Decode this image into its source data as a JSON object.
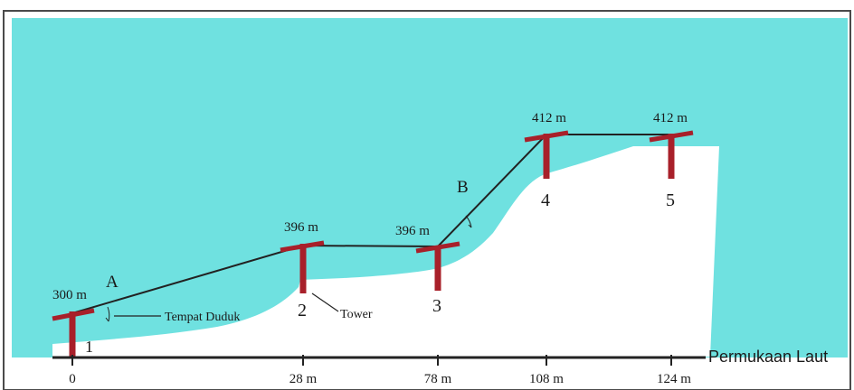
{
  "colors": {
    "sky": "#6fe1e0",
    "ground": "#ffffff",
    "tower": "#a8202a",
    "cable": "#222222",
    "axis": "#222222",
    "frame": "#4a4a4a"
  },
  "elevations": {
    "tower1": "300 m",
    "tower2": "396 m",
    "tower3": "396 m",
    "tower4": "412 m",
    "tower5": "412 m"
  },
  "tower_numbers": {
    "t1": "1",
    "t2": "2",
    "t3": "3",
    "t4": "4",
    "t5": "5"
  },
  "segments": {
    "a": "A",
    "b": "B"
  },
  "annotations": {
    "seat": "Tempat Duduk",
    "tower": "Tower"
  },
  "axis": {
    "title": "Permukaan Laut",
    "ticks": [
      "0",
      "28 m",
      "78 m",
      "108 m",
      "124 m"
    ]
  }
}
